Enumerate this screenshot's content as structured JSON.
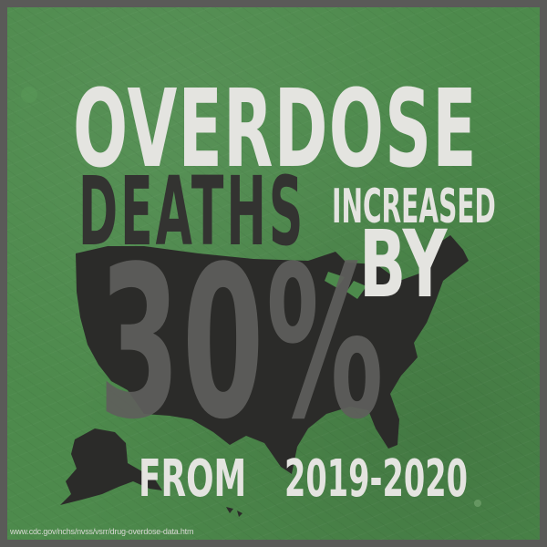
{
  "headline": {
    "line1": "OVERDOSE",
    "line2a": "DEATHS",
    "line2b": "INCREASED",
    "line3": "BY",
    "stat": "30%",
    "line4a": "FROM",
    "line4b": "2019-2020"
  },
  "source_url": "www.cdc.gov/nchs/nvss/vsrr/drug-overdose-data.htm",
  "colors": {
    "background_green": "#4d8a4c",
    "border_gray": "#5a5a58",
    "light_text": "#e4e4e0",
    "map_dark": "#2b2b29",
    "deaths_text": "#333331",
    "percent_text": "#5f5f5c"
  },
  "graphic": {
    "map_icon": "united-states-map-silhouette"
  }
}
